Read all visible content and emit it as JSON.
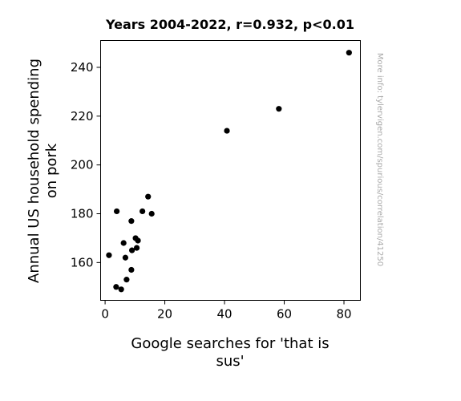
{
  "chart_data": {
    "type": "scatter",
    "title": "Years 2004-2022, r=0.932, p<0.01",
    "xlabel_lines": [
      "Google searches for 'that is",
      "sus'"
    ],
    "ylabel_lines": [
      "Annual US household spending",
      "on pork"
    ],
    "watermark": "More info: tylervigen.com/spurious/correlation/41250",
    "xlim": [
      -1.5,
      85.5
    ],
    "ylim": [
      144.5,
      251
    ],
    "x_ticks": [
      0,
      20,
      40,
      60,
      80
    ],
    "y_ticks": [
      160,
      180,
      200,
      220,
      240
    ],
    "x_tick_labels": [
      "0",
      "20",
      "40",
      "60",
      "80"
    ],
    "y_tick_labels": [
      "160",
      "180",
      "200",
      "220",
      "240"
    ],
    "grid": false,
    "marker_color": "#000000",
    "points": [
      {
        "x": 1.3,
        "y": 163
      },
      {
        "x": 3.7,
        "y": 150
      },
      {
        "x": 3.9,
        "y": 181
      },
      {
        "x": 5.4,
        "y": 149
      },
      {
        "x": 6.2,
        "y": 168
      },
      {
        "x": 6.8,
        "y": 162
      },
      {
        "x": 7.2,
        "y": 153
      },
      {
        "x": 8.8,
        "y": 157
      },
      {
        "x": 8.8,
        "y": 177
      },
      {
        "x": 9.0,
        "y": 165
      },
      {
        "x": 10.2,
        "y": 170
      },
      {
        "x": 10.6,
        "y": 166
      },
      {
        "x": 11.0,
        "y": 169
      },
      {
        "x": 12.5,
        "y": 181
      },
      {
        "x": 14.4,
        "y": 187
      },
      {
        "x": 15.6,
        "y": 180
      },
      {
        "x": 40.8,
        "y": 214
      },
      {
        "x": 58.2,
        "y": 223
      },
      {
        "x": 81.7,
        "y": 246
      }
    ]
  }
}
